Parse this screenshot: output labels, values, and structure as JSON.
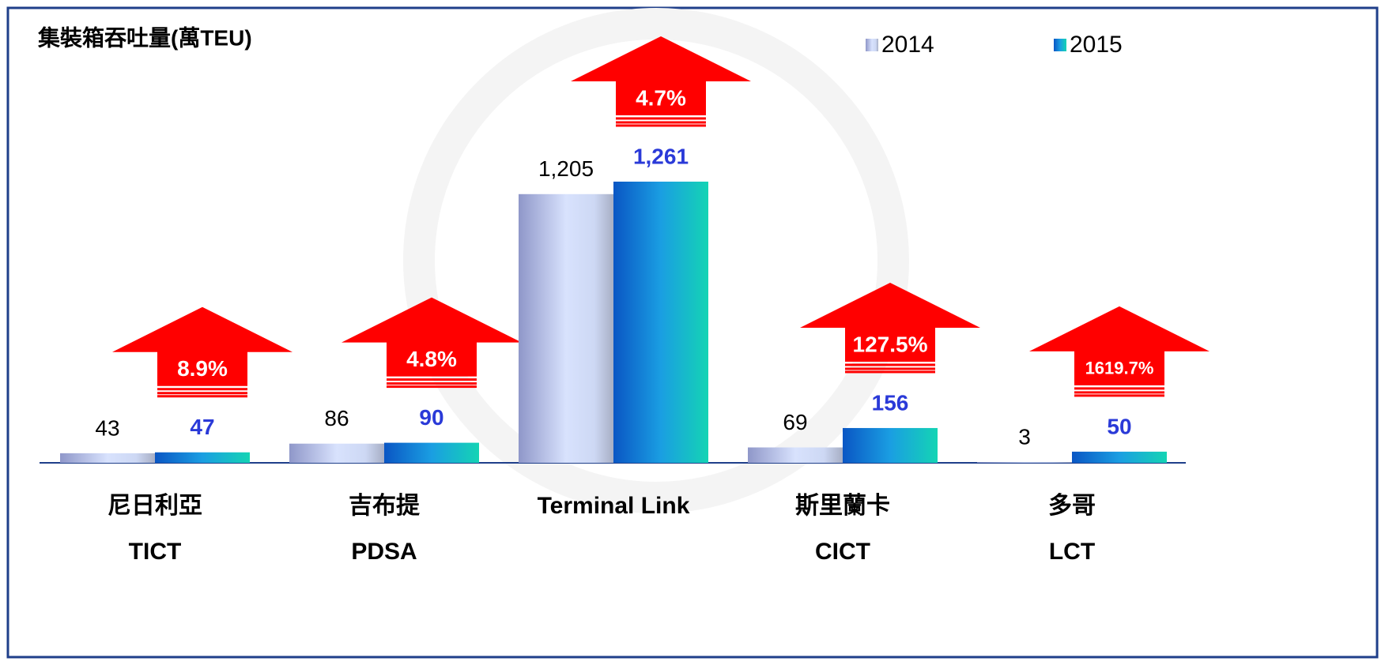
{
  "chart_data": {
    "type": "bar",
    "title": "集裝箱吞吐量(萬TEU)",
    "categories": [
      "尼日利亞",
      "吉布提",
      "Terminal Link",
      "斯里蘭卡",
      "多哥"
    ],
    "category_codes": [
      "TICT",
      "PDSA",
      null,
      "CICT",
      "LCT"
    ],
    "series": [
      {
        "name": "2014",
        "color": "#aab4e6",
        "values": [
          43,
          86,
          1205,
          69,
          3
        ],
        "value_labels": [
          "43",
          "86",
          "1,205",
          "69",
          "3"
        ]
      },
      {
        "name": "2015",
        "color": "#0e7fd8",
        "values": [
          47,
          90,
          1261,
          156,
          50
        ],
        "value_labels": [
          "47",
          "90",
          "1,261",
          "156",
          "50"
        ]
      }
    ],
    "growth": {
      "color": "#ff0000",
      "values": [
        8.9,
        4.8,
        4.7,
        127.5,
        1619.7
      ],
      "value_labels": [
        "8.9%",
        "4.8%",
        "4.7%",
        "127.5%",
        "1619.7%"
      ]
    },
    "ylim": [
      0,
      1500
    ]
  }
}
